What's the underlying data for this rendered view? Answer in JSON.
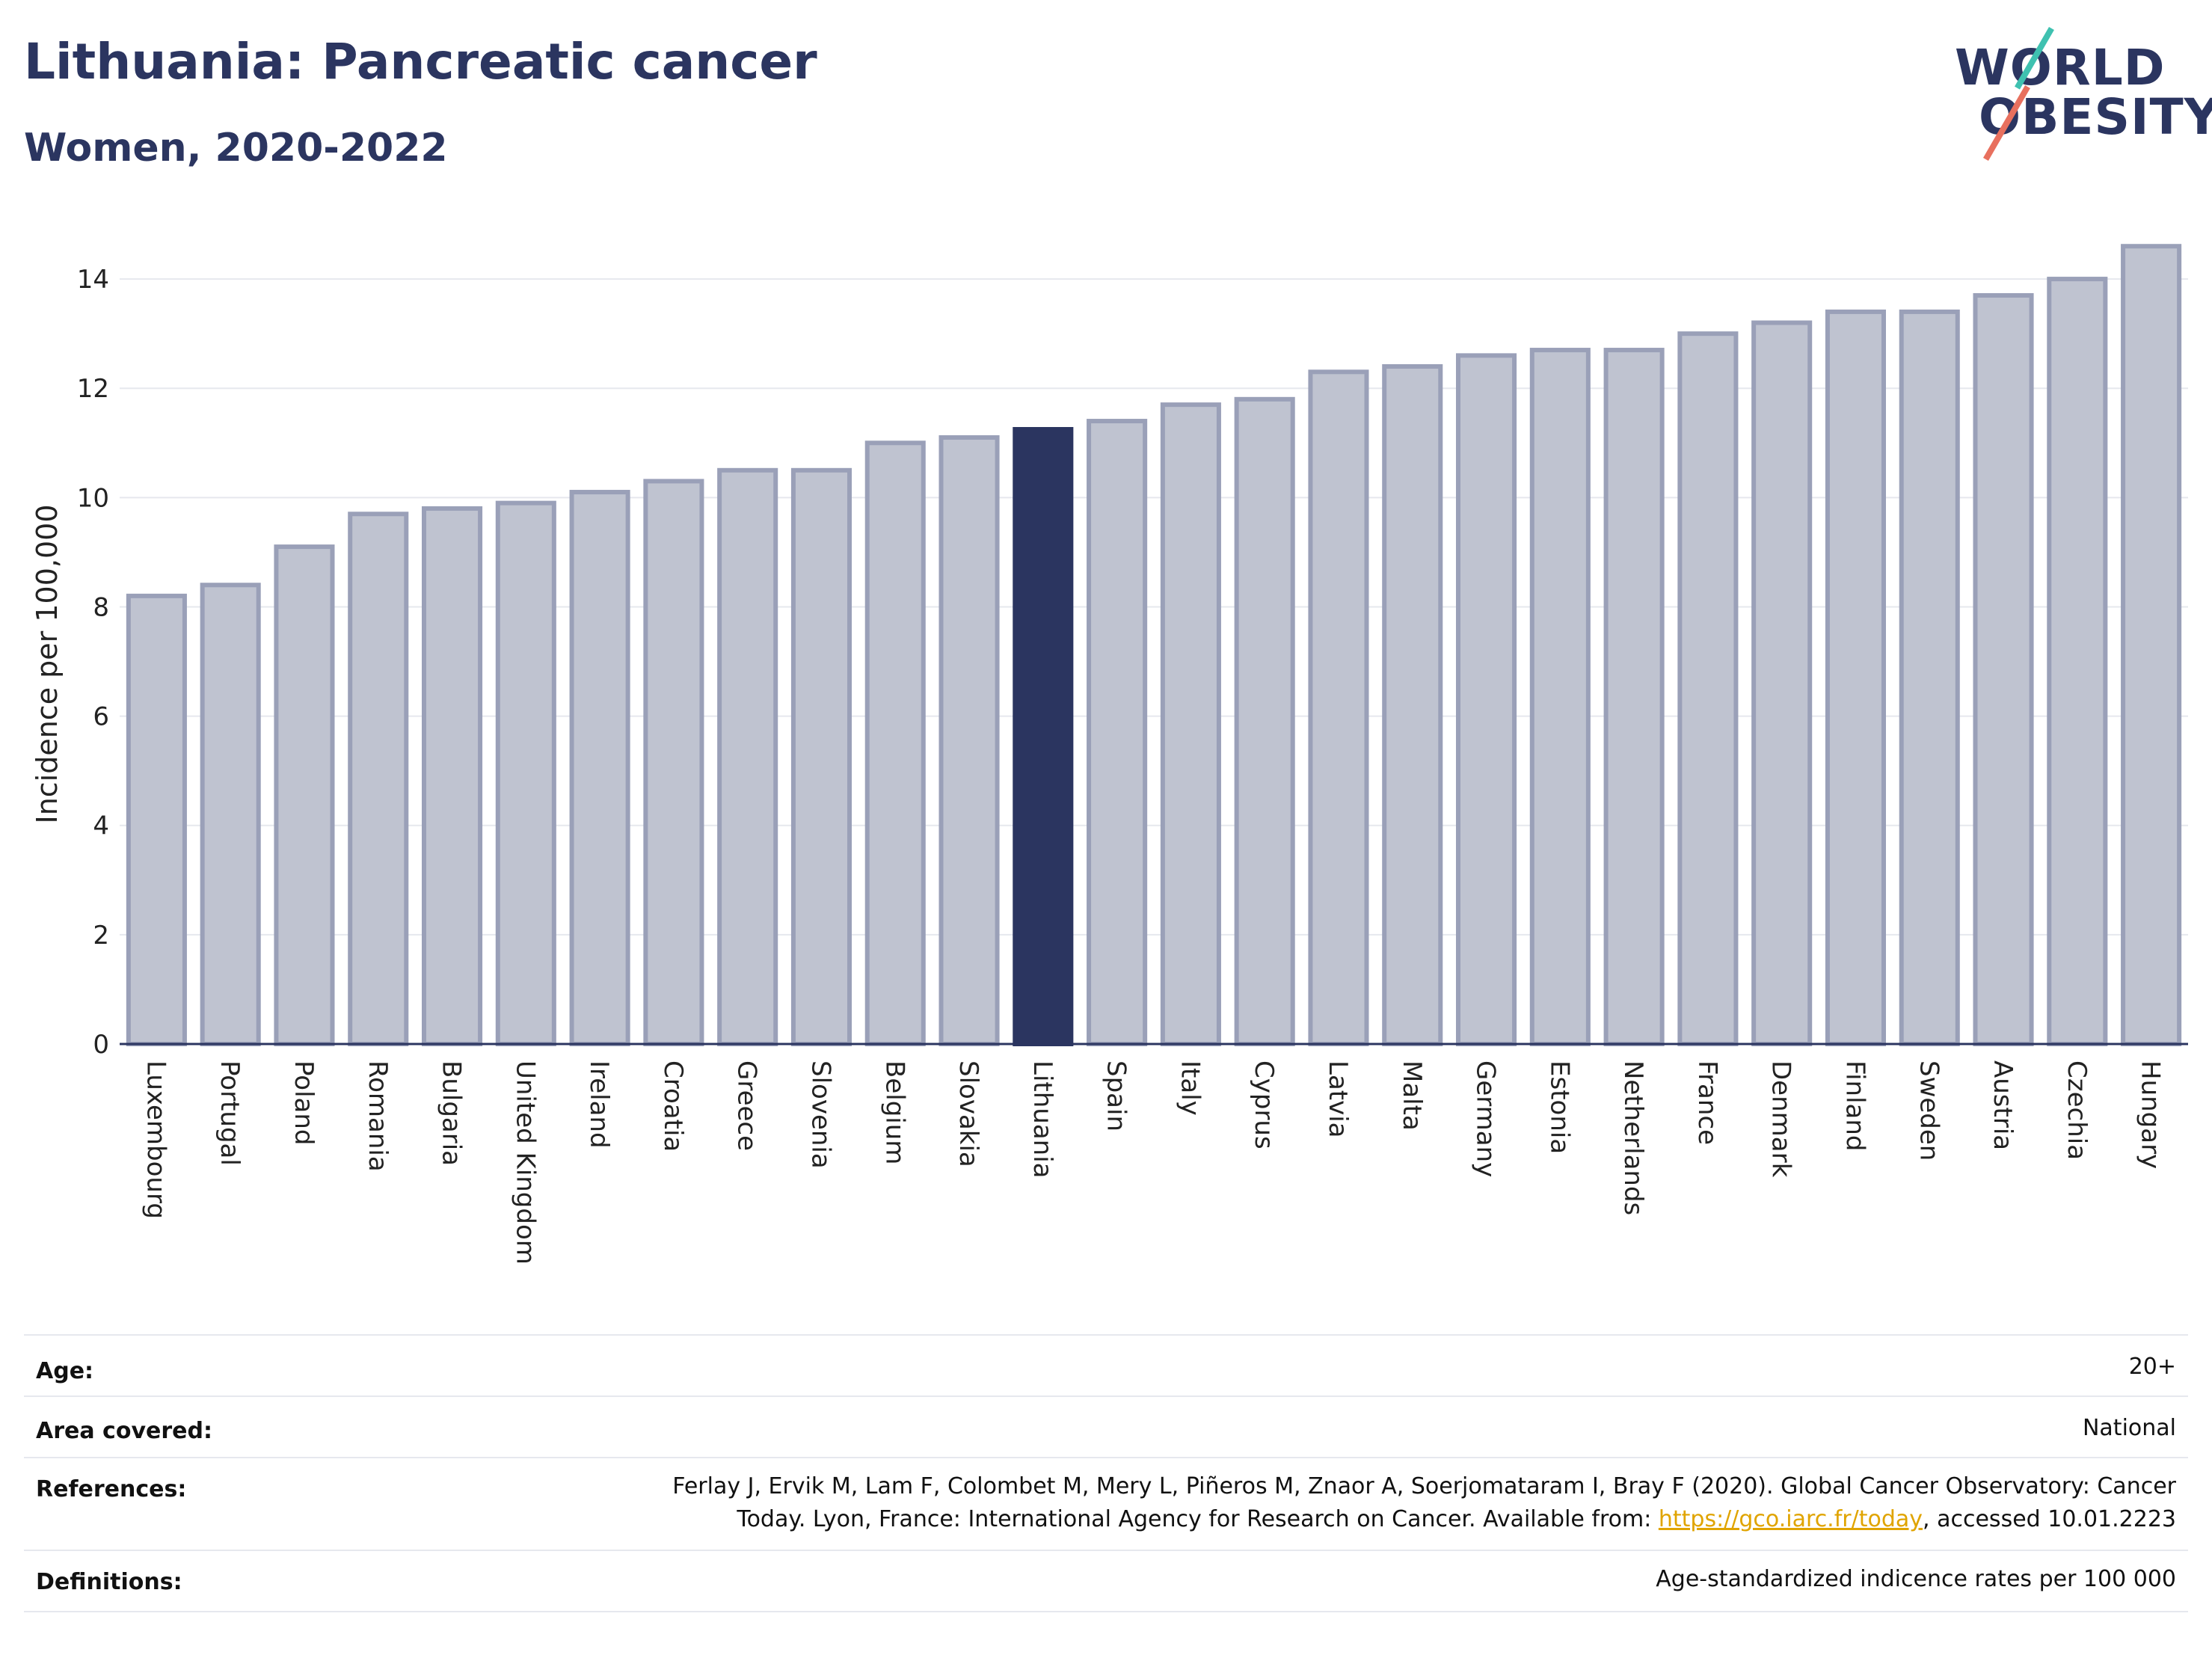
{
  "header": {
    "title": "Lithuania: Pancreatic cancer",
    "subtitle": "Women, 2020-2022",
    "logo_line1": "WORLD",
    "logo_line2": "OBESITY"
  },
  "chart_data": {
    "type": "bar",
    "ylabel": "Incidence per 100,000",
    "ylim": [
      0,
      15
    ],
    "yticks": [
      0,
      2,
      4,
      6,
      8,
      10,
      12,
      14
    ],
    "grid": true,
    "highlight": "Lithuania",
    "colors": {
      "bar": "#bfc3d0",
      "bar_edge": "#9aa0b8",
      "highlight": "#2b3560"
    },
    "categories": [
      "Luxembourg",
      "Portugal",
      "Poland",
      "Romania",
      "Bulgaria",
      "United Kingdom",
      "Ireland",
      "Croatia",
      "Greece",
      "Slovenia",
      "Belgium",
      "Slovakia",
      "Lithuania",
      "Spain",
      "Italy",
      "Cyprus",
      "Latvia",
      "Malta",
      "Germany",
      "Estonia",
      "Netherlands",
      "France",
      "Denmark",
      "Finland",
      "Sweden",
      "Austria",
      "Czechia",
      "Hungary"
    ],
    "values": [
      8.2,
      8.4,
      9.1,
      9.7,
      9.8,
      9.9,
      10.1,
      10.3,
      10.5,
      10.5,
      11.0,
      11.1,
      11.25,
      11.4,
      11.7,
      11.8,
      12.3,
      12.4,
      12.6,
      12.7,
      12.7,
      13.0,
      13.2,
      13.4,
      13.4,
      13.7,
      14.0,
      14.6
    ]
  },
  "meta": {
    "age_key": "Age:",
    "age_val": "20+",
    "area_key": "Area covered:",
    "area_val": "National",
    "ref_key": "References:",
    "ref_line1": "Ferlay J, Ervik M, Lam F, Colombet M, Mery L, Piñeros M, Znaor A, Soerjomataram I, Bray F (2020). Global Cancer Observatory: Cancer",
    "ref_line2_pre": "Today. Lyon, France: International Agency for Research on Cancer. Available from: ",
    "ref_link": "https://gco.iarc.fr/today",
    "ref_line2_post": ", accessed 10.01.2223",
    "def_key": "Definitions:",
    "def_val": "Age-standardized indicence rates per 100 000"
  }
}
